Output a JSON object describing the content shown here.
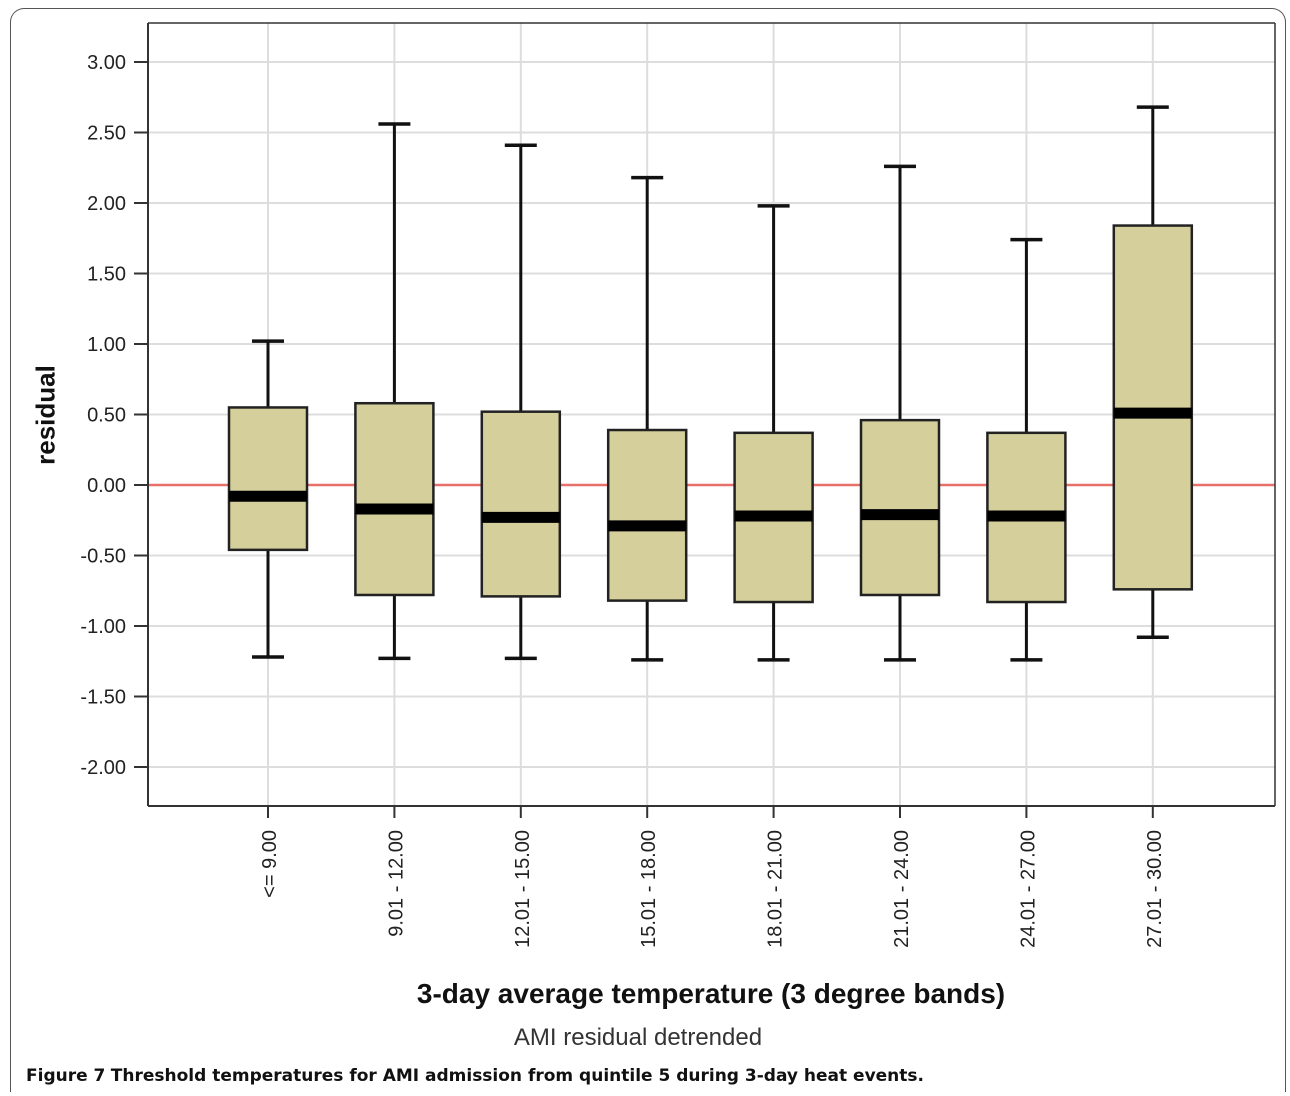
{
  "chart_data": {
    "type": "boxplot",
    "title": "",
    "xlabel": "3-day average temperature (3 degree bands)",
    "ylabel": "residual",
    "subtitle": "AMI residual detrended",
    "ylim": [
      -2.3,
      3.3
    ],
    "yticks": [
      "3.00",
      "2.50",
      "2.00",
      "1.50",
      "1.00",
      "0.50",
      "0.00",
      "-0.50",
      "-1.00",
      "-1.50",
      "-2.00"
    ],
    "ytick_values": [
      3.0,
      2.5,
      2.0,
      1.5,
      1.0,
      0.5,
      0.0,
      -0.5,
      -1.0,
      -1.5,
      -2.0
    ],
    "reference_line": 0.0,
    "grid": true,
    "colors": {
      "box_fill": "#d4cf9b",
      "box_stroke": "#222222",
      "reference_line": "#e8706a",
      "grid": "#dddddd"
    },
    "categories": [
      "<= 9.00",
      "9.01 - 12.00",
      "12.01 - 15.00",
      "15.01 - 18.00",
      "18.01 - 21.00",
      "21.01 - 24.00",
      "24.01 - 27.00",
      "27.01 - 30.00"
    ],
    "boxes": [
      {
        "whisker_low": -1.22,
        "q1": -0.46,
        "median": -0.08,
        "q3": 0.55,
        "whisker_high": 1.02
      },
      {
        "whisker_low": -1.23,
        "q1": -0.78,
        "median": -0.17,
        "q3": 0.58,
        "whisker_high": 2.56
      },
      {
        "whisker_low": -1.23,
        "q1": -0.79,
        "median": -0.23,
        "q3": 0.52,
        "whisker_high": 2.41
      },
      {
        "whisker_low": -1.24,
        "q1": -0.82,
        "median": -0.29,
        "q3": 0.39,
        "whisker_high": 2.18
      },
      {
        "whisker_low": -1.24,
        "q1": -0.83,
        "median": -0.22,
        "q3": 0.37,
        "whisker_high": 1.98
      },
      {
        "whisker_low": -1.24,
        "q1": -0.78,
        "median": -0.21,
        "q3": 0.46,
        "whisker_high": 2.26
      },
      {
        "whisker_low": -1.24,
        "q1": -0.83,
        "median": -0.22,
        "q3": 0.37,
        "whisker_high": 1.74
      },
      {
        "whisker_low": -1.08,
        "q1": -0.74,
        "median": 0.51,
        "q3": 1.84,
        "whisker_high": 2.68
      }
    ]
  },
  "caption": {
    "label": "Figure 7",
    "text": "Threshold temperatures for AMI admission from quintile 5 during 3-day heat events."
  }
}
